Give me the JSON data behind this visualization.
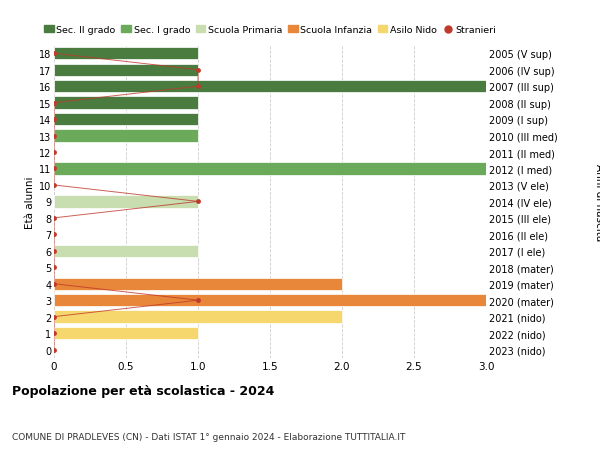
{
  "ages": [
    18,
    17,
    16,
    15,
    14,
    13,
    12,
    11,
    10,
    9,
    8,
    7,
    6,
    5,
    4,
    3,
    2,
    1,
    0
  ],
  "anni": [
    "2005 (V sup)",
    "2006 (IV sup)",
    "2007 (III sup)",
    "2008 (II sup)",
    "2009 (I sup)",
    "2010 (III med)",
    "2011 (II med)",
    "2012 (I med)",
    "2013 (V ele)",
    "2014 (IV ele)",
    "2015 (III ele)",
    "2016 (II ele)",
    "2017 (I ele)",
    "2018 (mater)",
    "2019 (mater)",
    "2020 (mater)",
    "2021 (nido)",
    "2022 (nido)",
    "2023 (nido)"
  ],
  "bars": [
    {
      "age": 18,
      "value": 1.0,
      "color": "#4a7c3f"
    },
    {
      "age": 17,
      "value": 1.0,
      "color": "#4a7c3f"
    },
    {
      "age": 16,
      "value": 3.0,
      "color": "#4a7c3f"
    },
    {
      "age": 15,
      "value": 1.0,
      "color": "#4a7c3f"
    },
    {
      "age": 14,
      "value": 1.0,
      "color": "#4a7c3f"
    },
    {
      "age": 13,
      "value": 1.0,
      "color": "#6aaa5a"
    },
    {
      "age": 12,
      "value": 0.0,
      "color": "#6aaa5a"
    },
    {
      "age": 11,
      "value": 3.0,
      "color": "#6aaa5a"
    },
    {
      "age": 10,
      "value": 0.0,
      "color": "#c8ddb0"
    },
    {
      "age": 9,
      "value": 1.0,
      "color": "#c8ddb0"
    },
    {
      "age": 8,
      "value": 0.0,
      "color": "#c8ddb0"
    },
    {
      "age": 7,
      "value": 0.0,
      "color": "#c8ddb0"
    },
    {
      "age": 6,
      "value": 1.0,
      "color": "#c8ddb0"
    },
    {
      "age": 5,
      "value": 0.0,
      "color": "#e8863a"
    },
    {
      "age": 4,
      "value": 2.0,
      "color": "#e8863a"
    },
    {
      "age": 3,
      "value": 3.0,
      "color": "#e8863a"
    },
    {
      "age": 2,
      "value": 2.0,
      "color": "#f5d76e"
    },
    {
      "age": 1,
      "value": 1.0,
      "color": "#f5d76e"
    },
    {
      "age": 0,
      "value": 0.0,
      "color": "#f5d76e"
    }
  ],
  "stranieri": {
    "18": 0,
    "17": 1,
    "16": 1,
    "15": 0,
    "14": 0,
    "13": 0,
    "12": 0,
    "11": 0,
    "10": 0,
    "9": 1,
    "8": 0,
    "7": 0,
    "6": 0,
    "5": 0,
    "4": 0,
    "3": 1,
    "2": 0,
    "1": 0,
    "0": 0
  },
  "legend_labels": [
    "Sec. II grado",
    "Sec. I grado",
    "Scuola Primaria",
    "Scuola Infanzia",
    "Asilo Nido",
    "Stranieri"
  ],
  "legend_colors": [
    "#4a7c3f",
    "#6aaa5a",
    "#c8ddb0",
    "#e8863a",
    "#f5d76e",
    "#c0392b"
  ],
  "title": "Popolazione per età scolastica - 2024",
  "subtitle": "COMUNE DI PRADLEVES (CN) - Dati ISTAT 1° gennaio 2024 - Elaborazione TUTTITALIA.IT",
  "ylabel_left": "Età alunni",
  "ylabel_right": "Anni di nascita",
  "xlim": [
    0,
    3.0
  ],
  "bg_color": "#ffffff",
  "grid_color": "#cccccc",
  "bar_height": 0.75
}
